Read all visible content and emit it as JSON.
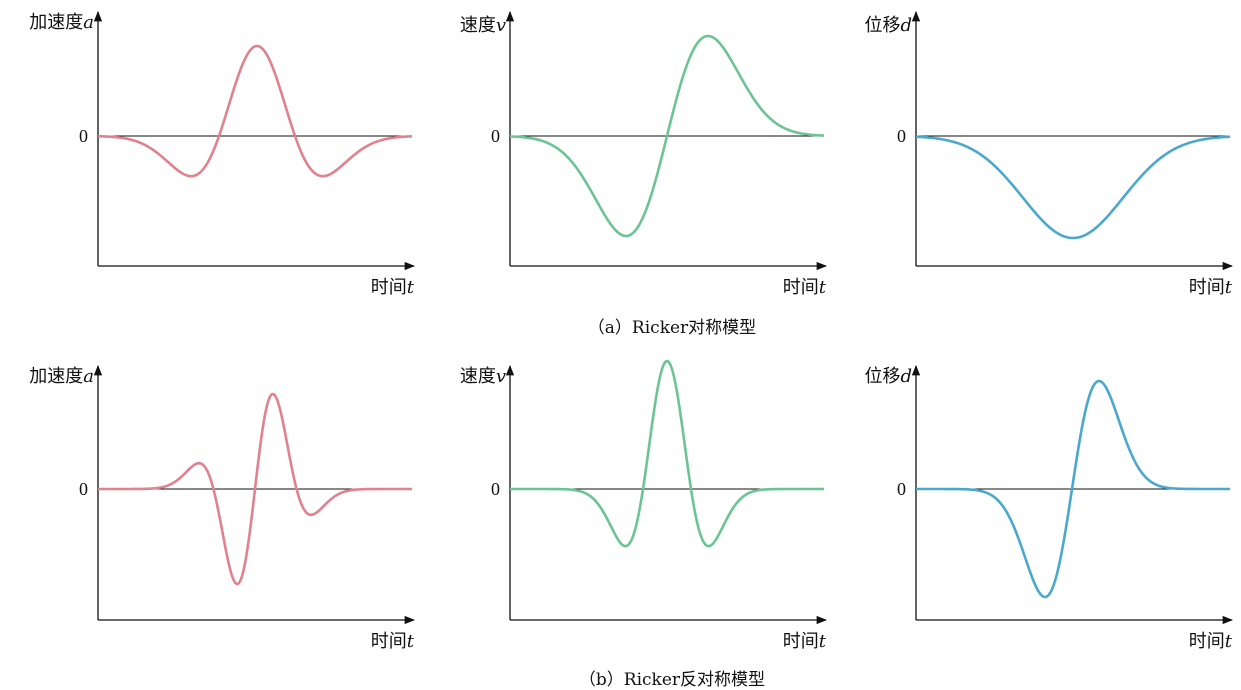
{
  "captions": {
    "a": "（a）Ricker对称模型",
    "b": "（b）Ricker反对称模型"
  },
  "colors": {
    "acceleration": "#e0828e",
    "velocity": "#6cc494",
    "displacement": "#4aa8cc",
    "axis": "#111111"
  },
  "chart_data": [
    {
      "id": "a-acc",
      "type": "line",
      "row": "a",
      "ylabel_text": "加速度",
      "ylabel_sym": "a",
      "xlabel_text": "时间",
      "xlabel_sym": "t",
      "zero_tick": "0",
      "color": "acceleration",
      "xlim": [
        0,
        1
      ],
      "ylim": [
        -1.3,
        1.0
      ],
      "t0": 0.5,
      "width": 0.1,
      "kind": "ricker_sym",
      "amp": 1.0
    },
    {
      "id": "a-vel",
      "type": "line",
      "row": "a",
      "ylabel_text": "速度",
      "ylabel_sym": "v",
      "xlabel_text": "时间",
      "xlabel_sym": "t",
      "zero_tick": "0",
      "color": "velocity",
      "xlim": [
        0,
        1
      ],
      "ylim": [
        -1.5,
        1.0
      ],
      "t0": 0.5,
      "width": 0.1,
      "kind": "ricker_sym_vel",
      "amp": 0.93
    },
    {
      "id": "a-dis",
      "type": "line",
      "row": "a",
      "ylabel_text": "位移",
      "ylabel_sym": "d",
      "xlabel_text": "时间",
      "xlabel_sym": "t",
      "zero_tick": "0",
      "color": "displacement",
      "xlim": [
        0,
        1
      ],
      "ylim": [
        -1.3,
        1.2
      ],
      "t0": 0.5,
      "width": 0.1,
      "kind": "ricker_sym_dis",
      "amp": 1.0
    },
    {
      "id": "b-acc",
      "type": "line",
      "row": "b",
      "ylabel_text": "加速度",
      "ylabel_sym": "a",
      "xlabel_text": "时间",
      "xlabel_sym": "t",
      "zero_tick": "0",
      "color": "acceleration",
      "xlim": [
        0,
        1
      ],
      "ylim": [
        -1.4,
        1.2
      ],
      "t0": 0.5,
      "width": 0.065,
      "kind": "ricker_anti",
      "amp": 1.0
    },
    {
      "id": "b-vel",
      "type": "line",
      "row": "b",
      "ylabel_text": "速度",
      "ylabel_sym": "v",
      "xlabel_text": "时间",
      "xlabel_sym": "t",
      "zero_tick": "0",
      "color": "velocity",
      "xlim": [
        0,
        1
      ],
      "ylim": [
        -1.4,
        1.1
      ],
      "t0": 0.5,
      "width": 0.065,
      "kind": "ricker_anti_vel",
      "amp": 1.0
    },
    {
      "id": "b-dis",
      "type": "line",
      "row": "b",
      "ylabel_text": "位移",
      "ylabel_sym": "d",
      "xlabel_text": "时间",
      "xlabel_sym": "t",
      "zero_tick": "0",
      "color": "displacement",
      "xlim": [
        0,
        1
      ],
      "ylim": [
        -1.2,
        1.1
      ],
      "t0": 0.5,
      "width": 0.065,
      "kind": "ricker_anti_dis",
      "amp": 0.85
    }
  ]
}
